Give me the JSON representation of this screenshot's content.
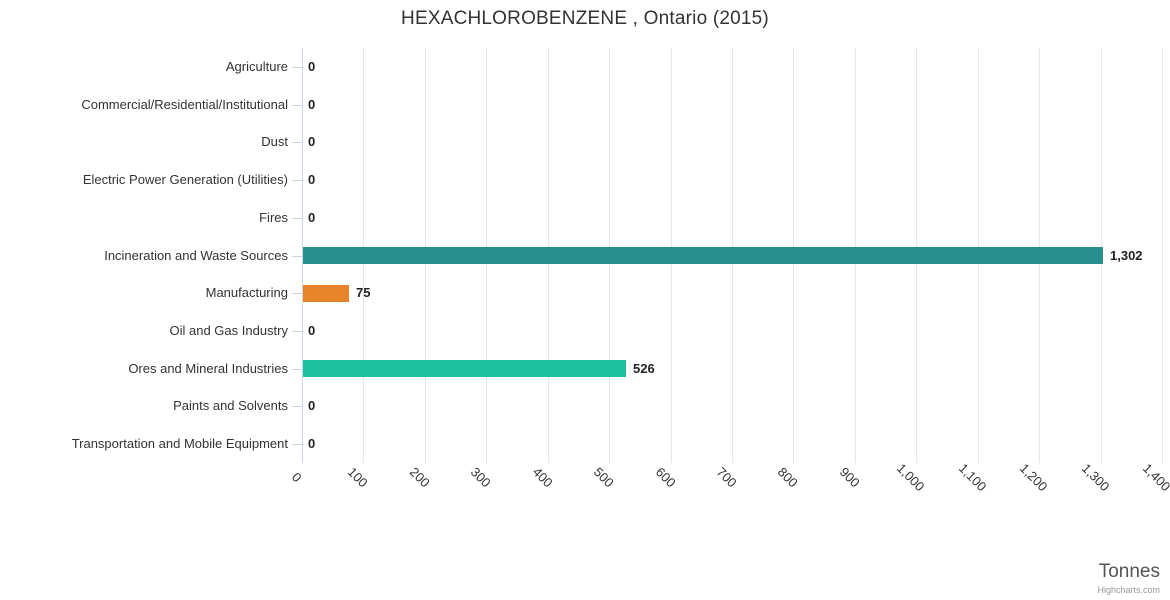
{
  "chart_data": {
    "type": "bar",
    "title": "HEXACHLOROBENZENE , Ontario (2015)",
    "categories": [
      "Agriculture",
      "Commercial/Residential/Institutional",
      "Dust",
      "Electric Power Generation (Utilities)",
      "Fires",
      "Incineration and Waste Sources",
      "Manufacturing",
      "Oil and Gas Industry",
      "Ores and Mineral Industries",
      "Paints and Solvents",
      "Transportation and Mobile Equipment"
    ],
    "values": [
      0,
      0,
      0,
      0,
      0,
      1302,
      75,
      0,
      526,
      0,
      0
    ],
    "bar_colors": [
      null,
      null,
      null,
      null,
      null,
      "#2b8f8e",
      "#e8832c",
      null,
      "#1dbf9e",
      null,
      null
    ],
    "data_labels": [
      "0",
      "0",
      "0",
      "0",
      "0",
      "1,302",
      "75",
      "0",
      "526",
      "0",
      "0"
    ],
    "xlabel": "Tonnes",
    "xlim": [
      0,
      1400
    ],
    "tick_interval": 100,
    "tick_labels": [
      "0",
      "100",
      "200",
      "300",
      "400",
      "500",
      "600",
      "700",
      "800",
      "900",
      "1,000",
      "1,100",
      "1,200",
      "1,300",
      "1,400"
    ],
    "grid": true,
    "legend": "none",
    "axis_line_color": "#ccd6eb",
    "grid_color": "#e6e6e6",
    "credits": "Highcharts.com"
  }
}
